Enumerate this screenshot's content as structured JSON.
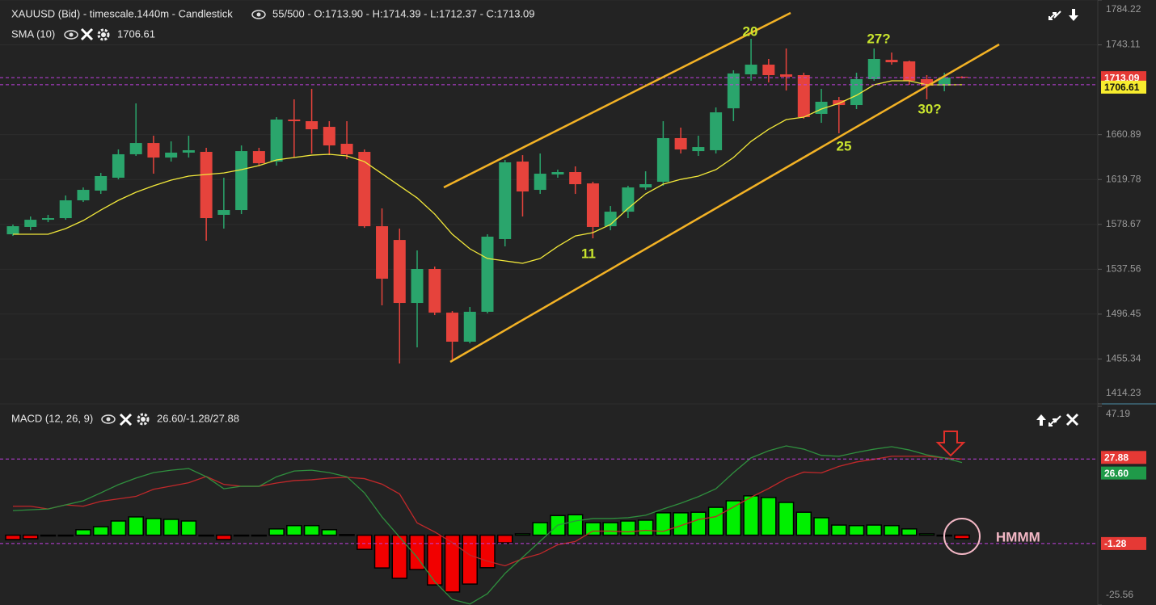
{
  "header": {
    "instrument": "XAUUSD (Bid) - timescale.1440m - Candlestick",
    "ohlc": "55/500 - O:1713.90 - H:1714.39 - L:1712.37 - C:1713.09",
    "macd_name": "MACD (12, 26, 9)",
    "macd_values": "26.60/-1.28/27.88"
  },
  "annotations": [
    "20",
    "27?",
    "11",
    "25",
    "30?",
    "HMMM"
  ],
  "chart_data": [
    {
      "type": "candlestick",
      "up_color": "#2aa56c",
      "down_color": "#e6433c",
      "open": [
        1569.6,
        1576.3,
        1582.9,
        1584.4,
        1600.7,
        1609.6,
        1621.4,
        1642.9,
        1653.2,
        1639.9,
        1644.4,
        1645.1,
        1587.4,
        1591.8,
        1645.8,
        1636.2,
        1674.7,
        1673.2,
        1668.0,
        1652.5,
        1645.1,
        1577.0,
        1564.4,
        1506.7,
        1537.8,
        1497.8,
        1471.2,
        1498.6,
        1565.2,
        1636.2,
        1610.3,
        1624.4,
        1626.6,
        1616.2,
        1577.0,
        1590.3,
        1612.5,
        1617.7,
        1657.7,
        1645.8,
        1646.6,
        1685.0,
        1716.1,
        1725.0,
        1716.1,
        1715.4,
        1679.9,
        1692.4,
        1688.0,
        1711.7,
        1729.4,
        1728.0,
        1711.7,
        1705.8,
        1713.9
      ],
      "high": [
        1578.5,
        1585.9,
        1587.4,
        1605.1,
        1612.5,
        1625.8,
        1647.3,
        1689.5,
        1659.9,
        1654.7,
        1659.9,
        1648.8,
        1621.4,
        1651.0,
        1648.8,
        1676.9,
        1693.2,
        1702.8,
        1673.2,
        1673.2,
        1647.3,
        1593.3,
        1574.8,
        1554.8,
        1540.0,
        1499.3,
        1503.0,
        1569.6,
        1637.7,
        1642.1,
        1643.6,
        1628.8,
        1631.8,
        1617.7,
        1595.5,
        1614.0,
        1627.3,
        1673.2,
        1667.3,
        1659.9,
        1685.8,
        1719.8,
        1748.7,
        1730.2,
        1739.8,
        1717.6,
        1702.8,
        1695.4,
        1717.6,
        1739.8,
        1736.1,
        1728.7,
        1715.4,
        1717.6,
        1714.39
      ],
      "low": [
        1568.1,
        1573.3,
        1580.7,
        1582.9,
        1599.2,
        1606.6,
        1619.9,
        1641.4,
        1625.1,
        1636.2,
        1639.9,
        1563.7,
        1574.8,
        1588.1,
        1632.5,
        1632.5,
        1639.9,
        1643.6,
        1642.1,
        1638.4,
        1575.5,
        1504.5,
        1451.2,
        1466.0,
        1495.6,
        1454.9,
        1469.7,
        1497.1,
        1558.5,
        1585.9,
        1606.6,
        1621.4,
        1606.6,
        1565.9,
        1573.3,
        1584.4,
        1610.3,
        1614.0,
        1643.6,
        1641.4,
        1643.6,
        1673.2,
        1710.2,
        1708.7,
        1701.3,
        1675.4,
        1671.7,
        1662.1,
        1684.3,
        1710.2,
        1725.0,
        1706.5,
        1693.2,
        1700.6,
        1712.37
      ],
      "close": [
        1577.0,
        1582.9,
        1584.4,
        1600.7,
        1610.3,
        1622.9,
        1642.9,
        1653.2,
        1639.9,
        1644.4,
        1646.6,
        1584.4,
        1591.8,
        1645.8,
        1634.7,
        1674.7,
        1673.2,
        1665.8,
        1651.0,
        1642.9,
        1577.0,
        1528.9,
        1506.7,
        1537.8,
        1497.8,
        1471.2,
        1498.6,
        1567.4,
        1635.5,
        1608.8,
        1625.1,
        1626.6,
        1615.5,
        1576.3,
        1590.3,
        1612.5,
        1615.5,
        1657.7,
        1647.3,
        1649.5,
        1681.3,
        1716.9,
        1725.0,
        1715.4,
        1713.9,
        1676.9,
        1691.0,
        1688.0,
        1711.7,
        1730.2,
        1727.2,
        1710.2,
        1705.8,
        1713.2,
        1713.09
      ],
      "series": [
        {
          "name": "SMA (10)",
          "color": "#f2e83a",
          "values": [
            1569.6,
            1569.6,
            1569.6,
            1574.8,
            1582.2,
            1591.8,
            1600.7,
            1608.1,
            1614.0,
            1619.2,
            1622.9,
            1624.4,
            1625.8,
            1628.8,
            1632.5,
            1637.7,
            1639.9,
            1642.1,
            1642.9,
            1641.4,
            1636.2,
            1625.1,
            1614.0,
            1602.9,
            1588.1,
            1569.6,
            1556.3,
            1547.4,
            1545.2,
            1543.0,
            1547.4,
            1558.5,
            1568.1,
            1571.1,
            1578.5,
            1593.3,
            1606.6,
            1615.5,
            1619.9,
            1622.9,
            1628.8,
            1639.9,
            1654.7,
            1665.8,
            1674.7,
            1676.9,
            1684.3,
            1689.5,
            1696.9,
            1706.5,
            1710.2,
            1710.2,
            1706.5,
            1706.5,
            1706.61
          ]
        }
      ],
      "ylim": [
        1414.23,
        1784.22
      ],
      "yticks": [
        1784.22,
        1743.11,
        1660.89,
        1619.78,
        1578.67,
        1537.56,
        1496.45,
        1455.34,
        1414.23
      ],
      "grid": true
    },
    {
      "type": "macd",
      "up_color": "#00f000",
      "down_color": "#f20000",
      "histogram": [
        -1.6,
        -1.3,
        0.0,
        0.0,
        2.0,
        3.1,
        5.2,
        6.7,
        6.1,
        5.8,
        5.2,
        -0.1,
        -1.6,
        0.0,
        0.0,
        2.3,
        3.5,
        3.5,
        2.0,
        0.2,
        -5.2,
        -12.0,
        -15.8,
        -12.6,
        -18.2,
        -20.8,
        -17.9,
        -11.9,
        -2.8,
        0.5,
        4.6,
        7.2,
        7.5,
        4.6,
        4.6,
        5.2,
        5.5,
        8.2,
        8.2,
        8.4,
        10.2,
        12.6,
        14.4,
        13.8,
        12.0,
        8.4,
        6.4,
        3.7,
        3.5,
        3.7,
        3.5,
        2.3,
        0.5,
        0.0,
        -1.28
      ],
      "series": [
        {
          "name": "MACD",
          "color": "#2f8f3e",
          "values": [
            9.0,
            9.3,
            9.6,
            11.1,
            12.6,
            15.5,
            18.5,
            20.9,
            22.9,
            23.8,
            24.4,
            21.4,
            17.0,
            17.9,
            17.9,
            21.4,
            23.5,
            23.8,
            22.9,
            21.4,
            15.5,
            6.7,
            -0.7,
            -8.1,
            -17.0,
            -23.5,
            -25.2,
            -21.4,
            -14.0,
            -8.1,
            -2.2,
            3.7,
            5.2,
            6.1,
            6.1,
            6.4,
            7.3,
            9.6,
            11.7,
            14.1,
            17.0,
            22.9,
            28.3,
            30.9,
            32.7,
            31.5,
            29.2,
            28.9,
            30.3,
            31.5,
            32.4,
            31.2,
            29.4,
            28.3,
            26.6
          ],
          "value_labels": {
            "54": "26.60"
          }
        },
        {
          "name": "Signal",
          "color": "#c0282a",
          "values": [
            10.6,
            10.6,
            9.6,
            11.1,
            10.6,
            12.4,
            13.3,
            14.2,
            16.8,
            18.0,
            19.2,
            21.5,
            18.6,
            17.9,
            17.9,
            19.1,
            20.0,
            20.3,
            20.9,
            21.2,
            20.7,
            18.7,
            15.1,
            4.5,
            1.2,
            -2.7,
            -7.3,
            -9.5,
            -11.2,
            -8.6,
            -6.8,
            -3.5,
            -2.3,
            1.5,
            1.5,
            1.2,
            1.8,
            1.4,
            3.5,
            5.7,
            6.8,
            10.3,
            13.9,
            17.1,
            20.7,
            23.1,
            22.8,
            25.2,
            26.8,
            27.8,
            28.9,
            28.9,
            28.9,
            28.3,
            27.88
          ]
        }
      ],
      "ylim": [
        -25.56,
        47.19
      ],
      "yticks": [
        47.19,
        -25.56
      ]
    }
  ]
}
